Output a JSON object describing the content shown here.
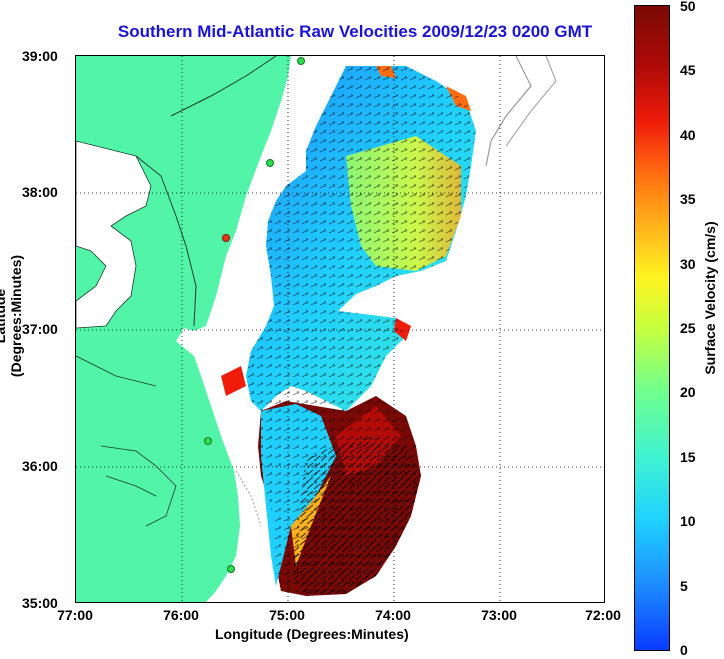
{
  "title": "Southern Mid-Atlantic Raw Velocities 2009/12/23 0200 GMT",
  "xlabel": "Longitude (Degrees:Minutes)",
  "ylabel": "Latitude (Degrees:Minutes)",
  "x_ticks": [
    "77:00",
    "76:00",
    "75:00",
    "74:00",
    "73:00",
    "72:00"
  ],
  "y_ticks": [
    "39:00",
    "38:00",
    "37:00",
    "36:00",
    "35:00"
  ],
  "colorbar": {
    "label": "Surface Velocity (cm/s)",
    "ticks": [
      "50",
      "45",
      "40",
      "35",
      "30",
      "25",
      "20",
      "15",
      "10",
      "5",
      "0"
    ],
    "min": 0,
    "max": 50
  },
  "colors": {
    "title": "#1a14d8",
    "land": "#52f5a8",
    "low": "#0a3cff",
    "high": "#7a0905"
  }
}
